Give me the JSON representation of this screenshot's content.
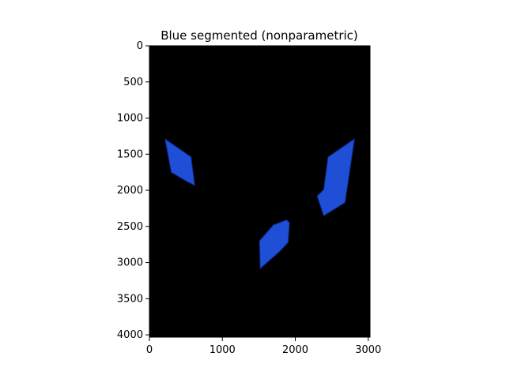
{
  "chart_data": {
    "type": "image",
    "title": "Blue segmented (nonparametric)",
    "xlabel": "",
    "ylabel": "",
    "xlim": [
      0,
      3024
    ],
    "ylim": [
      4032,
      0
    ],
    "x_ticks": [
      0,
      1000,
      2000,
      3000
    ],
    "y_ticks": [
      0,
      500,
      1000,
      1500,
      2000,
      2500,
      3000,
      3500,
      4000
    ],
    "grid": false,
    "background_color": "#000000",
    "segment_color": "#1f4fd6",
    "segment_edge_color": "#0b2f9a",
    "regions": [
      {
        "name": "left-region",
        "polygon": [
          [
            215,
            1290
          ],
          [
            570,
            1540
          ],
          [
            620,
            1930
          ],
          [
            520,
            1880
          ],
          [
            300,
            1750
          ]
        ]
      },
      {
        "name": "bottom-center-region",
        "polygon": [
          [
            1510,
            2700
          ],
          [
            1700,
            2480
          ],
          [
            1880,
            2410
          ],
          [
            1920,
            2450
          ],
          [
            1900,
            2720
          ],
          [
            1780,
            2850
          ],
          [
            1520,
            3080
          ]
        ]
      },
      {
        "name": "right-region",
        "polygon": [
          [
            2450,
            1540
          ],
          [
            2810,
            1290
          ],
          [
            2680,
            2170
          ],
          [
            2390,
            2350
          ],
          [
            2300,
            2080
          ],
          [
            2390,
            1990
          ]
        ]
      }
    ]
  }
}
